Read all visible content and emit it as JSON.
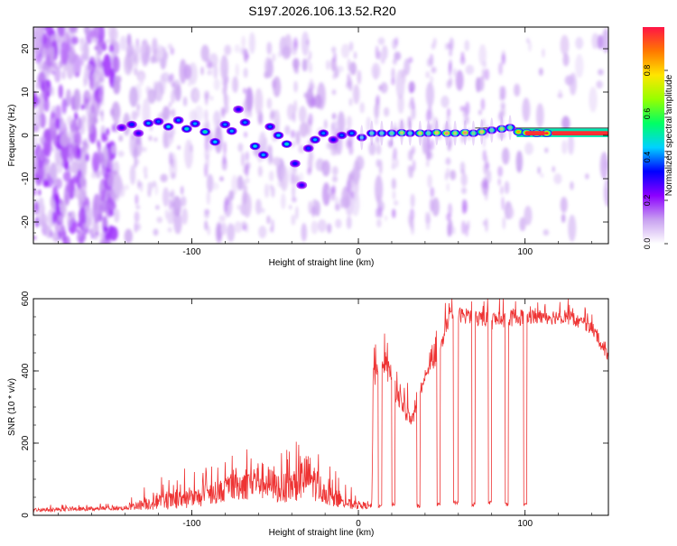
{
  "title": "S197.2026.106.13.52.R20",
  "chart_data": [
    {
      "type": "heatmap",
      "xlabel": "Height of straight line (km)",
      "ylabel": "Frequency (Hz)",
      "xlim": [
        -195,
        150
      ],
      "ylim": [
        -25,
        25
      ],
      "xticks": [
        -100,
        0,
        100
      ],
      "xtick_labels": [
        "-100",
        "0",
        "100"
      ],
      "yticks": [
        -20,
        -10,
        0,
        10,
        20
      ],
      "ytick_labels": [
        "-20",
        "-10",
        "0",
        "10",
        "20"
      ],
      "colorbar": {
        "label": "Normalized spectral amplitude",
        "range": [
          0,
          1
        ],
        "ticks": [
          0.0,
          0.2,
          0.4,
          0.6,
          0.8
        ],
        "tick_labels": [
          "0.0",
          "0.2",
          "0.4",
          "0.6",
          "0.8"
        ],
        "colors": [
          "#ffffff",
          "#c8a0f0",
          "#8c00ff",
          "#0000ff",
          "#00d2ff",
          "#00ff64",
          "#96ff00",
          "#ffe600",
          "#ff7800",
          "#ff1446"
        ]
      },
      "ridge_blobs": [
        {
          "x": -142,
          "f": 1.8,
          "amp": 0.28
        },
        {
          "x": -136,
          "f": 2.5,
          "amp": 0.35
        },
        {
          "x": -132,
          "f": 0.5,
          "amp": 0.3
        },
        {
          "x": -126,
          "f": 2.8,
          "amp": 0.42
        },
        {
          "x": -120,
          "f": 3.2,
          "amp": 0.38
        },
        {
          "x": -114,
          "f": 2.0,
          "amp": 0.45
        },
        {
          "x": -108,
          "f": 3.5,
          "amp": 0.4
        },
        {
          "x": -103,
          "f": 1.5,
          "amp": 0.48
        },
        {
          "x": -98,
          "f": 2.7,
          "amp": 0.42
        },
        {
          "x": -92,
          "f": 0.8,
          "amp": 0.5
        },
        {
          "x": -86,
          "f": -1.5,
          "amp": 0.44
        },
        {
          "x": -80,
          "f": 2.5,
          "amp": 0.4
        },
        {
          "x": -76,
          "f": 1.0,
          "amp": 0.42
        },
        {
          "x": -72,
          "f": 6.0,
          "amp": 0.32
        },
        {
          "x": -68,
          "f": 3.0,
          "amp": 0.4
        },
        {
          "x": -62,
          "f": -2.5,
          "amp": 0.46
        },
        {
          "x": -57,
          "f": -4.5,
          "amp": 0.42
        },
        {
          "x": -53,
          "f": 2.0,
          "amp": 0.38
        },
        {
          "x": -48,
          "f": 0.0,
          "amp": 0.44
        },
        {
          "x": -43,
          "f": -2.0,
          "amp": 0.48
        },
        {
          "x": -38,
          "f": -6.5,
          "amp": 0.34
        },
        {
          "x": -34,
          "f": -11.5,
          "amp": 0.3
        },
        {
          "x": -30,
          "f": -3.0,
          "amp": 0.36
        },
        {
          "x": -26,
          "f": -1.0,
          "amp": 0.42
        },
        {
          "x": -21,
          "f": 0.5,
          "amp": 0.4
        },
        {
          "x": -15,
          "f": -1.0,
          "amp": 0.32
        },
        {
          "x": -10,
          "f": 0.0,
          "amp": 0.38
        },
        {
          "x": -4,
          "f": 0.5,
          "amp": 0.4
        },
        {
          "x": 2,
          "f": -0.5,
          "amp": 0.44
        },
        {
          "x": 8,
          "f": 0.5,
          "amp": 0.5
        },
        {
          "x": 14,
          "f": 0.5,
          "amp": 0.5
        },
        {
          "x": 20,
          "f": 0.5,
          "amp": 0.55
        },
        {
          "x": 26,
          "f": 0.6,
          "amp": 0.7
        },
        {
          "x": 31,
          "f": 0.5,
          "amp": 0.5
        },
        {
          "x": 37,
          "f": 0.5,
          "amp": 0.75
        },
        {
          "x": 42,
          "f": 0.5,
          "amp": 0.55
        },
        {
          "x": 47,
          "f": 0.6,
          "amp": 0.8
        },
        {
          "x": 53,
          "f": 0.5,
          "amp": 0.9
        },
        {
          "x": 58,
          "f": 0.5,
          "amp": 0.7
        },
        {
          "x": 64,
          "f": 0.6,
          "amp": 0.9
        },
        {
          "x": 69,
          "f": 0.5,
          "amp": 0.6
        },
        {
          "x": 74,
          "f": 0.8,
          "amp": 0.8
        },
        {
          "x": 80,
          "f": 1.2,
          "amp": 0.55
        },
        {
          "x": 86,
          "f": 1.5,
          "amp": 0.7
        },
        {
          "x": 91,
          "f": 1.8,
          "amp": 0.6
        },
        {
          "x": 96,
          "f": 0.8,
          "amp": 0.85
        },
        {
          "x": 101,
          "f": 0.6,
          "amp": 0.95
        },
        {
          "x": 107,
          "f": 0.5,
          "amp": 0.95
        },
        {
          "x": 113,
          "f": 0.5,
          "amp": 0.98
        }
      ]
    },
    {
      "type": "line",
      "xlabel": "Height of straight line (km)",
      "ylabel": "SNR (10 * v/v)",
      "xlim": [
        -195,
        150
      ],
      "ylim": [
        0,
        600
      ],
      "xticks": [
        -100,
        0,
        100
      ],
      "xtick_labels": [
        "-100",
        "0",
        "100"
      ],
      "yticks": [
        0,
        200,
        400,
        600
      ],
      "ytick_labels": [
        "0",
        "200",
        "400",
        "600"
      ],
      "series": [
        {
          "name": "SNR",
          "color": "#ee3333",
          "envelope": [
            {
              "x": -195,
              "level": 15,
              "jitter": 10
            },
            {
              "x": -140,
              "level": 20,
              "jitter": 12
            },
            {
              "x": -125,
              "level": 35,
              "jitter": 40
            },
            {
              "x": -100,
              "level": 45,
              "jitter": 55
            },
            {
              "x": -80,
              "level": 70,
              "jitter": 65
            },
            {
              "x": -60,
              "level": 100,
              "jitter": 110
            },
            {
              "x": -45,
              "level": 70,
              "jitter": 80
            },
            {
              "x": -30,
              "level": 110,
              "jitter": 130
            },
            {
              "x": -20,
              "level": 60,
              "jitter": 60
            },
            {
              "x": -5,
              "level": 30,
              "jitter": 30
            },
            {
              "x": 8,
              "level": 25,
              "jitter": 15
            },
            {
              "x": 9,
              "level": 380,
              "jitter": 60
            },
            {
              "x": 15,
              "level": 430,
              "jitter": 70
            },
            {
              "x": 25,
              "level": 320,
              "jitter": 80
            },
            {
              "x": 32,
              "level": 260,
              "jitter": 40
            },
            {
              "x": 40,
              "level": 380,
              "jitter": 20
            },
            {
              "x": 50,
              "level": 470,
              "jitter": 60
            },
            {
              "x": 55,
              "level": 560,
              "jitter": 40
            },
            {
              "x": 80,
              "level": 540,
              "jitter": 50
            },
            {
              "x": 100,
              "level": 550,
              "jitter": 45
            },
            {
              "x": 125,
              "level": 550,
              "jitter": 40
            },
            {
              "x": 140,
              "level": 520,
              "jitter": 40
            },
            {
              "x": 150,
              "level": 440,
              "jitter": 30
            }
          ],
          "dropouts": [
            {
              "x0": 12,
              "x1": 14,
              "value": 25
            },
            {
              "x0": 20,
              "x1": 22,
              "value": 30
            },
            {
              "x0": 35,
              "x1": 37,
              "value": 25
            },
            {
              "x0": 47,
              "x1": 49,
              "value": 30
            },
            {
              "x0": 57,
              "x1": 60,
              "value": 35
            },
            {
              "x0": 68,
              "x1": 70,
              "value": 30
            },
            {
              "x0": 78,
              "x1": 80,
              "value": 35
            },
            {
              "x0": 88,
              "x1": 90,
              "value": 30
            },
            {
              "x0": 99,
              "x1": 101,
              "value": 30
            }
          ]
        }
      ]
    }
  ]
}
